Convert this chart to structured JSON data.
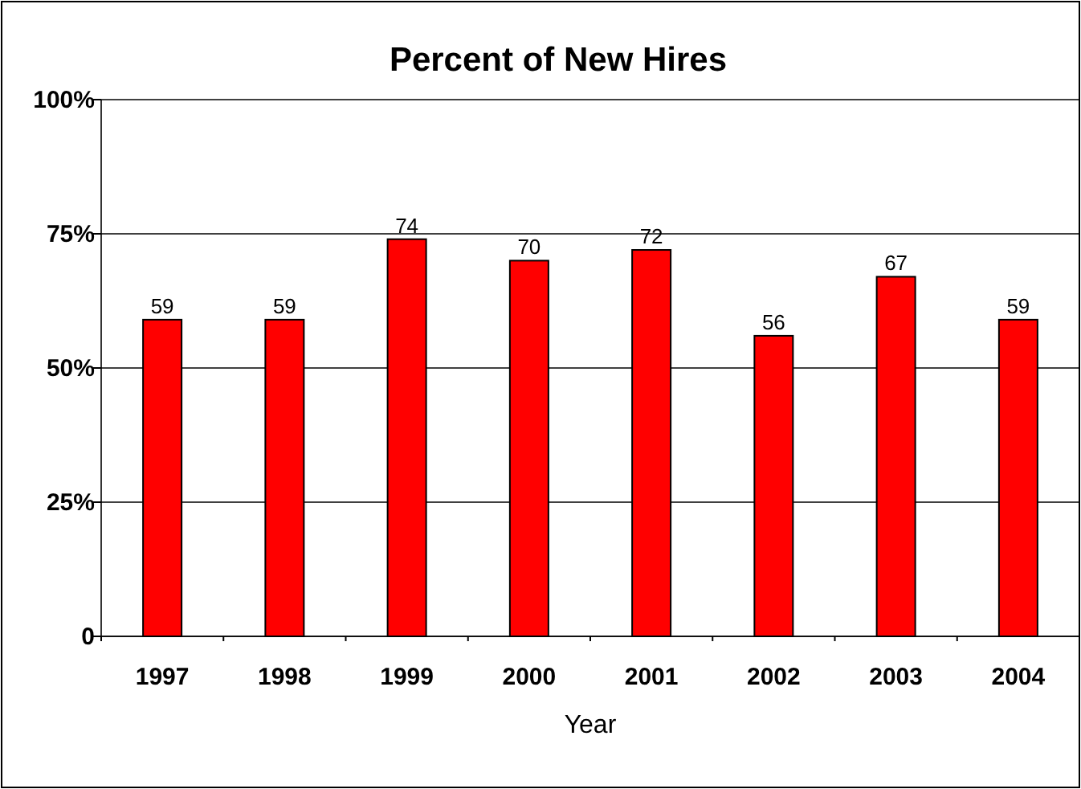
{
  "chart_data": {
    "type": "bar",
    "title": "Percent of New Hires",
    "xlabel": "Year",
    "categories": [
      "1997",
      "1998",
      "1999",
      "2000",
      "2001",
      "2002",
      "2003",
      "2004"
    ],
    "values": [
      59,
      59,
      74,
      70,
      72,
      56,
      67,
      59
    ],
    "color": "#ff0000",
    "data_labels": true,
    "grid": "y",
    "ylim": [
      0,
      100
    ],
    "yticks": [
      {
        "value": 0,
        "label": "0"
      },
      {
        "value": 25,
        "label": "25%"
      },
      {
        "value": 50,
        "label": "50%"
      },
      {
        "value": 75,
        "label": "75%"
      },
      {
        "value": 100,
        "label": "100%"
      }
    ]
  }
}
